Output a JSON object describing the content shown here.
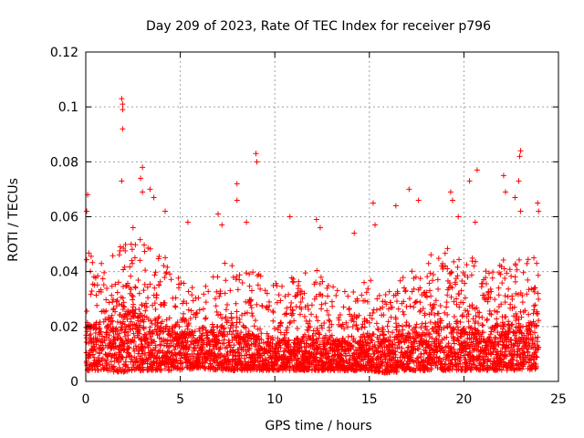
{
  "chart_data": {
    "type": "scatter",
    "title": "Day 209 of 2023, Rate Of TEC Index for receiver p796",
    "xlabel": "GPS time / hours",
    "ylabel": "ROTI / TECUs",
    "xlim": [
      0,
      25
    ],
    "ylim": [
      0,
      0.12
    ],
    "grid": true,
    "marker": "+",
    "color": "#ff0000",
    "x_ticks": [
      0,
      5,
      10,
      15,
      20,
      25
    ],
    "x_tick_labels": [
      "0",
      "5",
      "10",
      "15",
      "20",
      "25"
    ],
    "y_ticks": [
      0,
      0.02,
      0.04,
      0.06,
      0.08,
      0.1,
      0.12
    ],
    "y_tick_labels": [
      "0",
      "0.02",
      "0.04",
      "0.06",
      "0.08",
      "0.1",
      "0.12"
    ],
    "series": [
      {
        "name": "ROTI",
        "notable_points": [
          {
            "x": 1.9,
            "y": 0.103
          },
          {
            "x": 1.95,
            "y": 0.101
          },
          {
            "x": 1.95,
            "y": 0.099
          },
          {
            "x": 1.95,
            "y": 0.092
          },
          {
            "x": 1.9,
            "y": 0.073
          },
          {
            "x": 0.1,
            "y": 0.068
          },
          {
            "x": 0.05,
            "y": 0.062
          },
          {
            "x": 3.0,
            "y": 0.078
          },
          {
            "x": 2.9,
            "y": 0.074
          },
          {
            "x": 3.0,
            "y": 0.069
          },
          {
            "x": 3.4,
            "y": 0.07
          },
          {
            "x": 3.6,
            "y": 0.067
          },
          {
            "x": 2.5,
            "y": 0.056
          },
          {
            "x": 4.2,
            "y": 0.062
          },
          {
            "x": 5.4,
            "y": 0.058
          },
          {
            "x": 7.0,
            "y": 0.061
          },
          {
            "x": 7.2,
            "y": 0.057
          },
          {
            "x": 8.0,
            "y": 0.072
          },
          {
            "x": 8.0,
            "y": 0.066
          },
          {
            "x": 9.0,
            "y": 0.083
          },
          {
            "x": 9.05,
            "y": 0.08
          },
          {
            "x": 8.5,
            "y": 0.058
          },
          {
            "x": 10.8,
            "y": 0.06
          },
          {
            "x": 12.2,
            "y": 0.059
          },
          {
            "x": 12.4,
            "y": 0.056
          },
          {
            "x": 14.2,
            "y": 0.054
          },
          {
            "x": 15.2,
            "y": 0.065
          },
          {
            "x": 15.3,
            "y": 0.057
          },
          {
            "x": 16.4,
            "y": 0.064
          },
          {
            "x": 17.1,
            "y": 0.07
          },
          {
            "x": 17.6,
            "y": 0.066
          },
          {
            "x": 19.3,
            "y": 0.069
          },
          {
            "x": 19.4,
            "y": 0.066
          },
          {
            "x": 19.7,
            "y": 0.06
          },
          {
            "x": 20.3,
            "y": 0.073
          },
          {
            "x": 20.7,
            "y": 0.077
          },
          {
            "x": 20.6,
            "y": 0.058
          },
          {
            "x": 22.1,
            "y": 0.075
          },
          {
            "x": 22.2,
            "y": 0.069
          },
          {
            "x": 22.7,
            "y": 0.067
          },
          {
            "x": 23.0,
            "y": 0.084
          },
          {
            "x": 22.95,
            "y": 0.082
          },
          {
            "x": 22.9,
            "y": 0.073
          },
          {
            "x": 23.0,
            "y": 0.062
          },
          {
            "x": 23.9,
            "y": 0.065
          },
          {
            "x": 23.95,
            "y": 0.062
          },
          {
            "x": 23.7,
            "y": 0.045
          }
        ],
        "baseline_envelope": {
          "hours": [
            0,
            1,
            2,
            3,
            4,
            5,
            6,
            7,
            8,
            9,
            10,
            11,
            12,
            13,
            14,
            15,
            16,
            17,
            18,
            19,
            20,
            21,
            22,
            23,
            24
          ],
          "typical_max": [
            0.048,
            0.045,
            0.05,
            0.052,
            0.048,
            0.04,
            0.032,
            0.045,
            0.042,
            0.04,
            0.036,
            0.038,
            0.042,
            0.035,
            0.032,
            0.04,
            0.035,
            0.04,
            0.046,
            0.05,
            0.048,
            0.042,
            0.045,
            0.048,
            0.045
          ],
          "typical_min": [
            0.004,
            0.004,
            0.003,
            0.004,
            0.004,
            0.004,
            0.005,
            0.004,
            0.004,
            0.004,
            0.004,
            0.004,
            0.004,
            0.004,
            0.004,
            0.004,
            0.003,
            0.004,
            0.004,
            0.004,
            0.004,
            0.004,
            0.004,
            0.004,
            0.004
          ],
          "dense_core_max": [
            0.02,
            0.022,
            0.026,
            0.024,
            0.022,
            0.018,
            0.016,
            0.02,
            0.018,
            0.016,
            0.015,
            0.016,
            0.017,
            0.015,
            0.014,
            0.017,
            0.015,
            0.018,
            0.02,
            0.022,
            0.02,
            0.018,
            0.02,
            0.022,
            0.02
          ],
          "data_end_hour": 23.95
        }
      }
    ]
  }
}
